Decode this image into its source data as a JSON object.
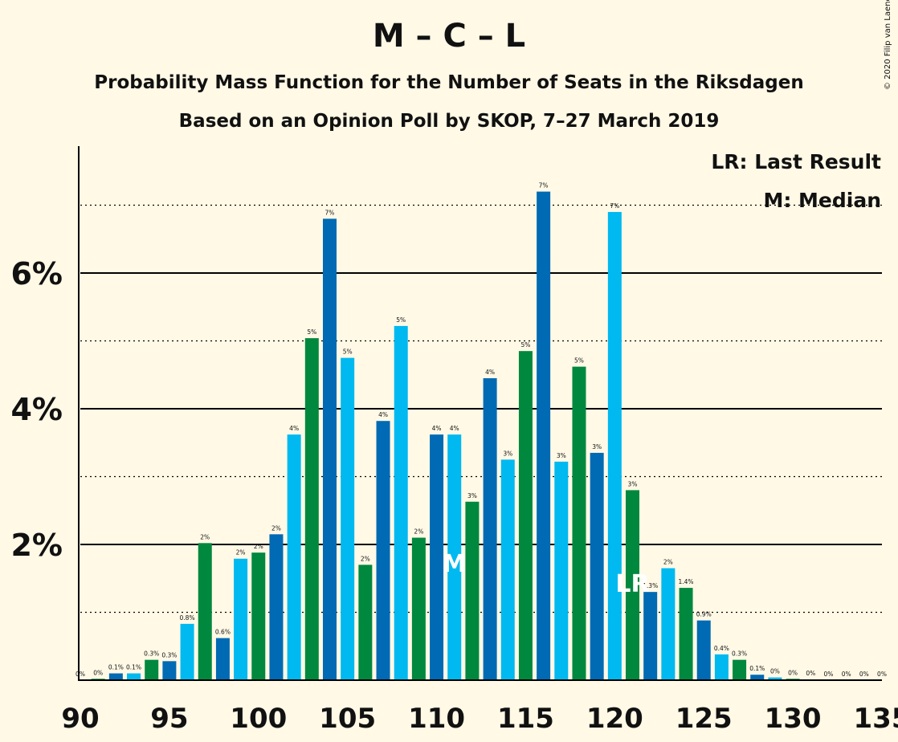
{
  "chart_data": {
    "type": "bar",
    "title": "M – C – L",
    "subtitle": "Probability Mass Function for the Number of Seats in the Riksdagen",
    "subtitle2": "Based on an Opinion Poll by SKOP, 7–27 March 2019",
    "copyright": "© 2020 Filip van Laenen",
    "xlim": [
      90,
      135
    ],
    "ylim": [
      0,
      7.8
    ],
    "x_ticks": [
      "90",
      "95",
      "100",
      "105",
      "110",
      "115",
      "120",
      "125",
      "130",
      "135"
    ],
    "y_ticks": [
      {
        "value": 2,
        "label": "2%"
      },
      {
        "value": 4,
        "label": "4%"
      },
      {
        "value": 6,
        "label": "6%"
      }
    ],
    "dotted_gridlines": [
      1,
      3,
      5,
      7
    ],
    "legend": [
      "LR: Last Result",
      "M: Median"
    ],
    "colors": {
      "light_blue": "#00B9F0",
      "dark_blue": "#006AB4",
      "green": "#00883E",
      "background": "#FFF9E6"
    },
    "seats": [
      90,
      91,
      92,
      93,
      94,
      95,
      96,
      97,
      98,
      99,
      100,
      101,
      102,
      103,
      104,
      105,
      106,
      107,
      108,
      109,
      110,
      111,
      112,
      113,
      114,
      115,
      116,
      117,
      118,
      119,
      120,
      121,
      122,
      123,
      124,
      125,
      126,
      127,
      128,
      129,
      130,
      131,
      132,
      133,
      134,
      135
    ],
    "values": [
      0.0,
      0.02,
      0.1,
      0.1,
      0.3,
      0.28,
      0.83,
      2.02,
      0.62,
      1.79,
      1.88,
      2.15,
      3.62,
      5.04,
      6.8,
      4.75,
      1.7,
      3.82,
      5.22,
      2.1,
      3.62,
      3.62,
      2.63,
      4.45,
      3.25,
      4.85,
      7.2,
      3.22,
      4.62,
      3.35,
      6.9,
      2.8,
      1.3,
      1.65,
      1.36,
      0.88,
      0.38,
      0.3,
      0.08,
      0.04,
      0.02,
      0.01,
      0.0,
      0.0,
      0.0,
      0.0
    ],
    "bar_labels": [
      "0%",
      "0%",
      "0.1%",
      "0.1%",
      "0.3%",
      "0.3%",
      "0.8%",
      "2%",
      "0.6%",
      "2%",
      "2%",
      "2%",
      "4%",
      "5%",
      "7%",
      "5%",
      "2%",
      "4%",
      "5%",
      "2%",
      "4%",
      "4%",
      "3%",
      "4%",
      "3%",
      "5%",
      "7%",
      "3%",
      "5%",
      "3%",
      "7%",
      "3%",
      "1.3%",
      "2%",
      "1.4%",
      "0.9%",
      "0.4%",
      "0.3%",
      "0.1%",
      "0%",
      "0%",
      "0%",
      "0%",
      "0%",
      "0%",
      "0%"
    ],
    "color_keys": [
      "dark_blue",
      "green",
      "dark_blue",
      "light_blue",
      "green",
      "dark_blue",
      "light_blue",
      "green",
      "dark_blue",
      "light_blue",
      "green",
      "dark_blue",
      "light_blue",
      "green",
      "dark_blue",
      "light_blue",
      "green",
      "dark_blue",
      "light_blue",
      "green",
      "dark_blue",
      "light_blue",
      "green",
      "dark_blue",
      "light_blue",
      "green",
      "dark_blue",
      "light_blue",
      "green",
      "dark_blue",
      "light_blue",
      "green",
      "dark_blue",
      "light_blue",
      "green",
      "dark_blue",
      "light_blue",
      "green",
      "dark_blue",
      "light_blue",
      "green",
      "dark_blue",
      "light_blue",
      "green",
      "dark_blue",
      "light_blue"
    ],
    "markers": [
      {
        "seat": 111,
        "text": "M"
      },
      {
        "seat": 121,
        "text": "LR"
      }
    ]
  }
}
